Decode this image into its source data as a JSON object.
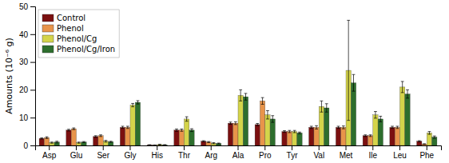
{
  "chart_data": {
    "type": "bar",
    "categories": [
      "Asp",
      "Glu",
      "Ser",
      "Gly",
      "His",
      "Thr",
      "Arg",
      "Ala",
      "Pro",
      "Tyr",
      "Val",
      "Met",
      "Ile",
      "Leu",
      "Phe"
    ],
    "series": [
      {
        "name": "Control",
        "color": "#7B1010",
        "values": [
          2.5,
          5.5,
          3.2,
          6.5,
          0.2,
          5.5,
          1.5,
          8.0,
          7.5,
          5.0,
          6.5,
          6.5,
          3.5,
          6.5,
          1.5
        ],
        "errors": [
          0.2,
          0.3,
          0.3,
          0.4,
          0.05,
          0.4,
          0.2,
          0.4,
          0.4,
          0.3,
          0.4,
          0.4,
          0.3,
          0.4,
          0.2
        ]
      },
      {
        "name": "Phenol",
        "color": "#E8944A",
        "values": [
          2.8,
          6.0,
          3.5,
          6.5,
          0.1,
          5.5,
          1.2,
          8.0,
          16.0,
          5.0,
          6.5,
          6.5,
          3.5,
          6.5,
          0.5
        ],
        "errors": [
          0.3,
          0.3,
          0.3,
          0.4,
          0.05,
          0.4,
          0.2,
          0.5,
          1.2,
          0.4,
          0.6,
          0.5,
          0.3,
          0.4,
          0.1
        ]
      },
      {
        "name": "Phenol/Cg",
        "color": "#D4D44A",
        "values": [
          1.0,
          1.0,
          1.5,
          14.5,
          0.3,
          9.5,
          0.8,
          18.0,
          11.0,
          5.0,
          14.0,
          27.0,
          11.0,
          21.0,
          4.5
        ],
        "errors": [
          0.2,
          0.2,
          0.3,
          0.6,
          0.1,
          0.8,
          0.2,
          2.0,
          1.5,
          0.4,
          2.0,
          18.0,
          1.2,
          2.0,
          0.5
        ]
      },
      {
        "name": "Phenol/Cg/Iron",
        "color": "#2D6E2D",
        "values": [
          1.2,
          1.2,
          1.3,
          15.5,
          0.2,
          5.5,
          0.7,
          17.5,
          9.5,
          4.5,
          13.5,
          22.5,
          9.5,
          18.5,
          3.0
        ],
        "errors": [
          0.3,
          0.2,
          0.2,
          0.6,
          0.08,
          0.5,
          0.15,
          1.2,
          1.2,
          0.3,
          1.5,
          3.0,
          1.0,
          1.5,
          0.4
        ]
      }
    ],
    "ylabel": "Amounts (10⁻⁶ g)",
    "ylim": [
      0,
      50
    ],
    "yticks": [
      0,
      10,
      20,
      30,
      40,
      50
    ],
    "legend": "upper left",
    "grid": false
  }
}
